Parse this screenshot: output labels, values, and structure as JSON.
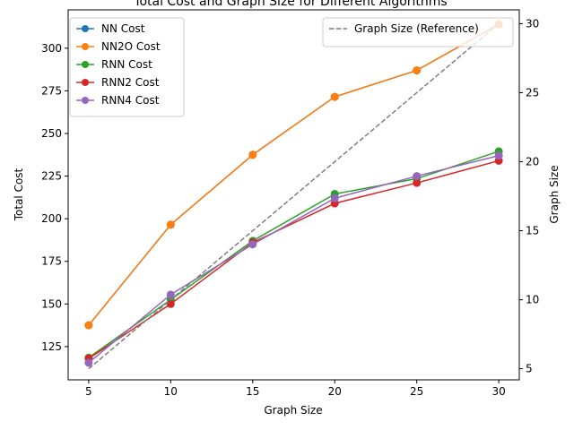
{
  "chart_data": {
    "type": "line",
    "title": "Total Cost and Graph Size for Different Algorithms",
    "xlabel": "Graph Size",
    "ylabel": "Total Cost",
    "y2label": "Graph Size",
    "x": [
      5,
      10,
      15,
      20,
      25,
      30
    ],
    "xticks": [
      5,
      10,
      15,
      20,
      25,
      30
    ],
    "xlim": [
      3.75,
      31.25
    ],
    "ylim": [
      105.5,
      322.5
    ],
    "yticks": [
      125,
      150,
      175,
      200,
      225,
      250,
      275,
      300
    ],
    "y2lim": [
      4.2,
      31.0
    ],
    "y2ticks": [
      5,
      10,
      15,
      20,
      25,
      30
    ],
    "grid": false,
    "legend_left_placement": "upper-left",
    "legend_right_placement": "upper-right",
    "series": [
      {
        "name": "NN Cost",
        "axis": "left",
        "color": "#1f77b4",
        "style": "solid",
        "marker": "circle",
        "values": [
          137.5,
          196.5,
          237.5,
          271.5,
          287.0,
          314.0
        ]
      },
      {
        "name": "NN2O Cost",
        "axis": "left",
        "color": "#ff7f0e",
        "style": "solid",
        "marker": "circle",
        "values": [
          137.5,
          196.5,
          237.5,
          271.5,
          287.0,
          314.0
        ]
      },
      {
        "name": "RNN Cost",
        "axis": "left",
        "color": "#2ca02c",
        "style": "solid",
        "marker": "circle",
        "values": [
          118.5,
          152.5,
          187.0,
          214.5,
          223.5,
          239.5
        ]
      },
      {
        "name": "RNN2 Cost",
        "axis": "left",
        "color": "#d62728",
        "style": "solid",
        "marker": "circle",
        "values": [
          118.0,
          150.0,
          186.0,
          209.0,
          221.0,
          234.0
        ]
      },
      {
        "name": "RNN4 Cost",
        "axis": "left",
        "color": "#9467bd",
        "style": "solid",
        "marker": "circle",
        "values": [
          115.5,
          155.5,
          185.0,
          212.0,
          225.0,
          237.0
        ]
      },
      {
        "name": "Graph Size (Reference)",
        "axis": "right",
        "color": "#7f7f7f",
        "style": "dashed",
        "marker": "none",
        "values": [
          5,
          10,
          15,
          20,
          25,
          30
        ]
      }
    ]
  }
}
